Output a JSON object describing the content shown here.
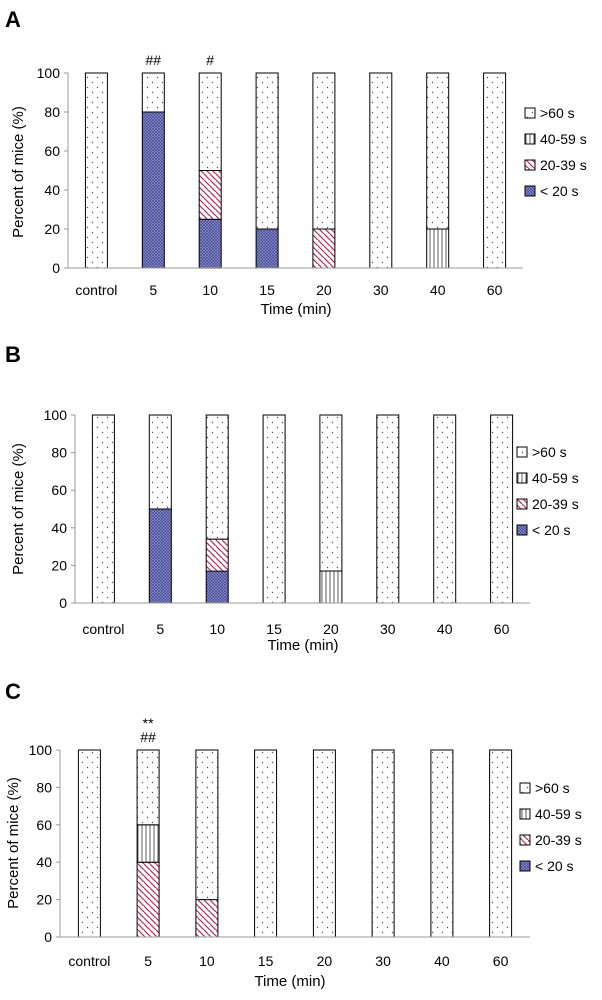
{
  "chart_data": [
    {
      "panel": "A",
      "type": "bar",
      "stacked": true,
      "title": "",
      "xlabel": "Time (min)",
      "ylabel": "Percent of mice (%)",
      "ylim": [
        0,
        100
      ],
      "yticks": [
        0,
        20,
        40,
        60,
        80,
        100
      ],
      "legend_position": "right",
      "categories": [
        "control",
        "5",
        "10",
        "15",
        "20",
        "30",
        "40",
        "60"
      ],
      "annotations": [
        {
          "category": "5",
          "lines": [
            "##"
          ]
        },
        {
          "category": "10",
          "lines": [
            "#"
          ]
        }
      ],
      "series": [
        {
          "name": "< 20 s",
          "pattern": "crosshatch",
          "values": [
            0,
            80,
            25,
            20,
            0,
            0,
            0,
            0
          ]
        },
        {
          "name": "20-39 s",
          "pattern": "diagonal",
          "values": [
            0,
            0,
            25,
            0,
            20,
            0,
            0,
            0
          ]
        },
        {
          "name": "40-59 s",
          "pattern": "vertical",
          "values": [
            0,
            0,
            0,
            0,
            0,
            0,
            20,
            0
          ]
        },
        {
          "name": ">60 s",
          "pattern": "dots",
          "values": [
            100,
            20,
            50,
            80,
            80,
            100,
            80,
            100
          ]
        }
      ]
    },
    {
      "panel": "B",
      "type": "bar",
      "stacked": true,
      "title": "",
      "xlabel": "Time (min)",
      "ylabel": "Percent of mice (%)",
      "ylim": [
        0,
        100
      ],
      "yticks": [
        0,
        20,
        40,
        60,
        80,
        100
      ],
      "legend_position": "right",
      "categories": [
        "control",
        "5",
        "10",
        "15",
        "20",
        "30",
        "40",
        "60"
      ],
      "annotations": [],
      "series": [
        {
          "name": "< 20 s",
          "pattern": "crosshatch",
          "values": [
            0,
            50,
            17,
            0,
            0,
            0,
            0,
            0
          ]
        },
        {
          "name": "20-39 s",
          "pattern": "diagonal",
          "values": [
            0,
            0,
            17,
            0,
            0,
            0,
            0,
            0
          ]
        },
        {
          "name": "40-59 s",
          "pattern": "vertical",
          "values": [
            0,
            0,
            0,
            0,
            17,
            0,
            0,
            0
          ]
        },
        {
          "name": ">60 s",
          "pattern": "dots",
          "values": [
            100,
            50,
            66,
            100,
            83,
            100,
            100,
            100
          ]
        }
      ]
    },
    {
      "panel": "C",
      "type": "bar",
      "stacked": true,
      "title": "",
      "xlabel": "Time (min)",
      "ylabel": "Percent of mice (%)",
      "ylim": [
        0,
        100
      ],
      "yticks": [
        0,
        20,
        40,
        60,
        80,
        100
      ],
      "legend_position": "right",
      "categories": [
        "control",
        "5",
        "10",
        "15",
        "20",
        "30",
        "40",
        "60"
      ],
      "annotations": [
        {
          "category": "5",
          "lines": [
            "**",
            "##"
          ]
        }
      ],
      "series": [
        {
          "name": "< 20 s",
          "pattern": "crosshatch",
          "values": [
            0,
            0,
            0,
            0,
            0,
            0,
            0,
            0
          ]
        },
        {
          "name": "20-39 s",
          "pattern": "diagonal",
          "values": [
            0,
            40,
            20,
            0,
            0,
            0,
            0,
            0
          ]
        },
        {
          "name": "40-59 s",
          "pattern": "vertical",
          "values": [
            0,
            20,
            0,
            0,
            0,
            0,
            0,
            0
          ]
        },
        {
          "name": ">60 s",
          "pattern": "dots",
          "values": [
            100,
            40,
            80,
            100,
            100,
            100,
            100,
            100
          ]
        }
      ]
    }
  ],
  "colors": {
    "crosshatch_fill": "#8c8fc8",
    "crosshatch_line": "#3b3f8f",
    "diagonal_line": "#c0305a",
    "dot_color": "#555555",
    "stroke": "#000000"
  }
}
